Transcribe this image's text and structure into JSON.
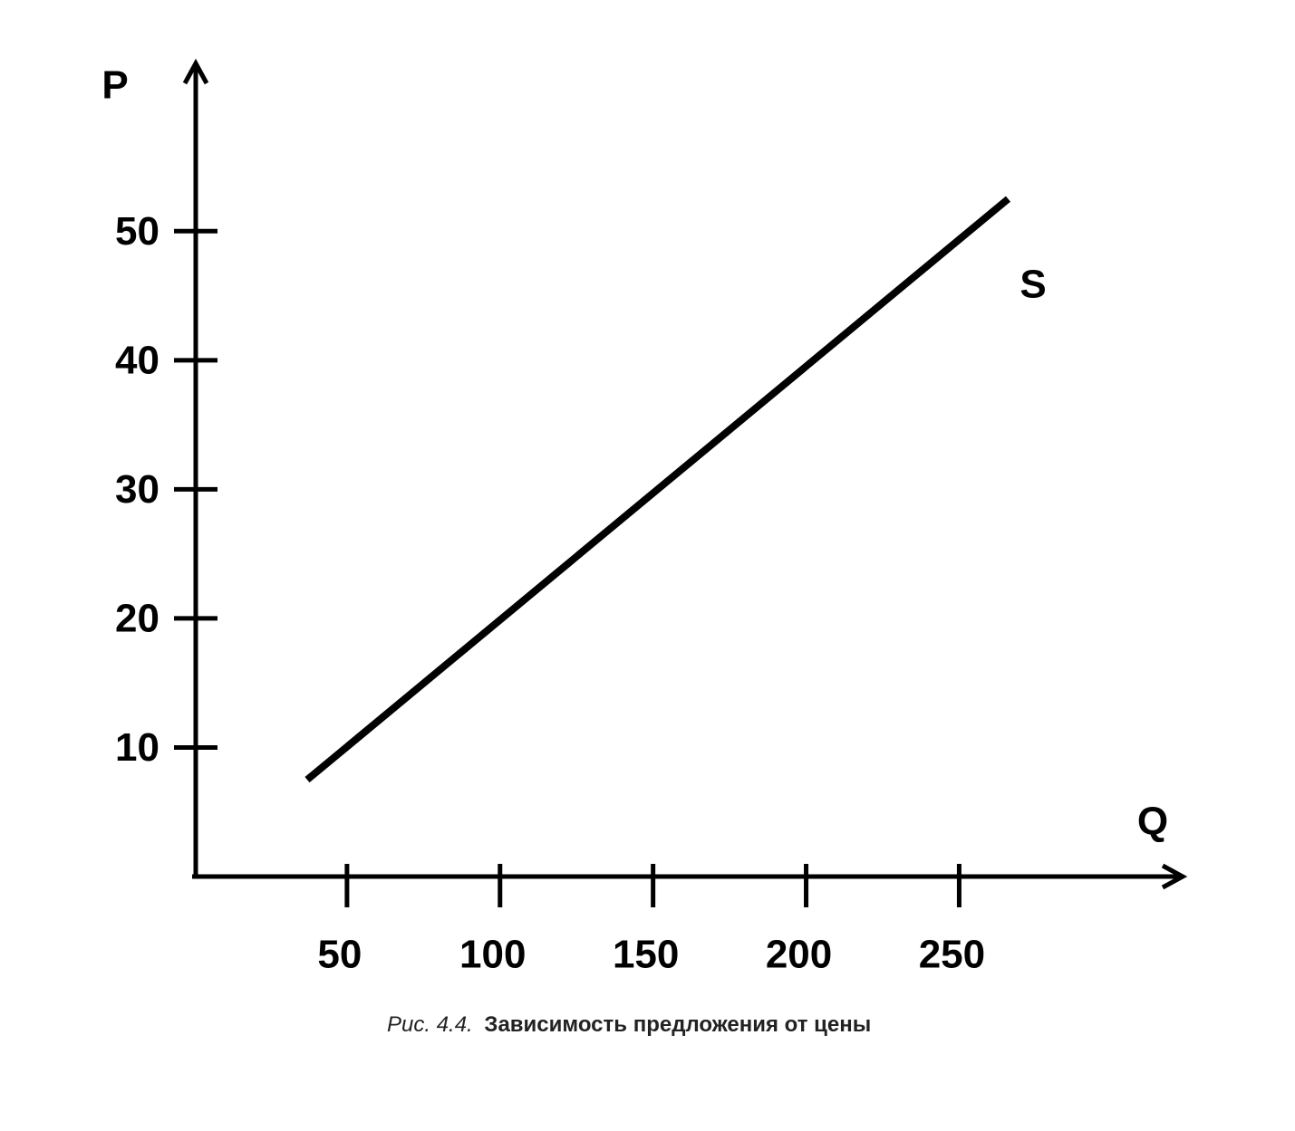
{
  "chart_data": {
    "type": "line",
    "y_label": "P",
    "x_label": "Q",
    "series": [
      {
        "name": "S",
        "color": "#000000",
        "x": [
          37,
          266
        ],
        "values": [
          7.5,
          52.5
        ]
      }
    ],
    "xlim": [
      0,
      323
    ],
    "ylim": [
      0,
      63
    ],
    "xticks": [
      50,
      100,
      150,
      200,
      250
    ],
    "yticks": [
      10,
      20,
      30,
      40,
      50
    ],
    "caption_number": "Рис. 4.4.",
    "caption": "Зависимость предложения от цены"
  }
}
